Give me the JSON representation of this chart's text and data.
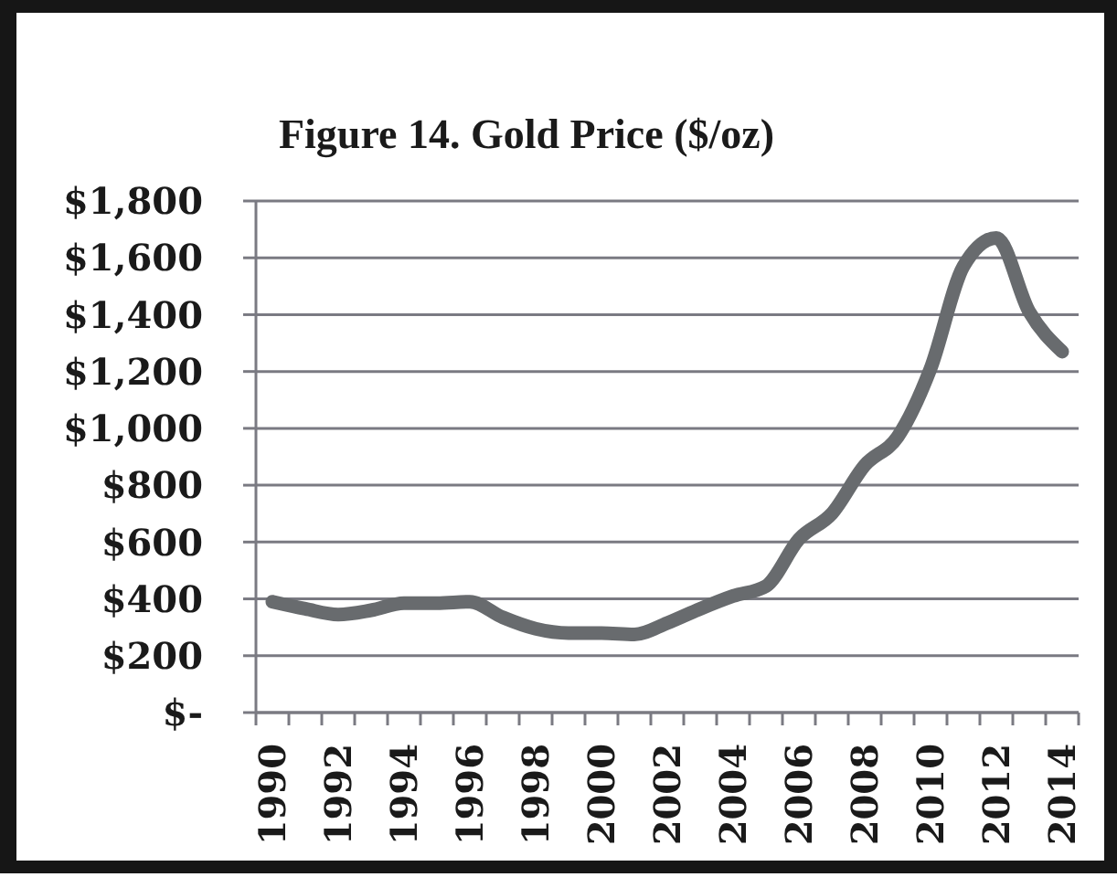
{
  "chart_data": {
    "type": "line",
    "title": "Figure 14. Gold Price ($/oz)",
    "categories": [
      "1990",
      null,
      "1992",
      null,
      "1994",
      null,
      "1996",
      null,
      "1998",
      null,
      "2000",
      null,
      "2002",
      null,
      "2004",
      null,
      "2006",
      null,
      "2008",
      null,
      "2010",
      null,
      "2012",
      null,
      "2014"
    ],
    "series": [
      {
        "color": "#686b6e",
        "values": [
          390,
          365,
          345,
          360,
          385,
          385,
          390,
          335,
          295,
          280,
          280,
          275,
          315,
          365,
          410,
          445,
          610,
          700,
          870,
          970,
          1210,
          1570,
          1670,
          1410,
          1270
        ]
      }
    ],
    "ylim": [
      0,
      1800
    ],
    "yticks": [
      {
        "value": 0,
        "label": "$-"
      },
      {
        "value": 200,
        "label": "$200"
      },
      {
        "value": 400,
        "label": "$400"
      },
      {
        "value": 600,
        "label": "$600"
      },
      {
        "value": 800,
        "label": "$800"
      },
      {
        "value": 1000,
        "label": "$1,000"
      },
      {
        "value": 1200,
        "label": "$1,200"
      },
      {
        "value": 1400,
        "label": "$1,400"
      },
      {
        "value": 1600,
        "label": "$1,600"
      },
      {
        "value": 1800,
        "label": "$1,800"
      }
    ],
    "grid": "y",
    "marker": "none",
    "line_style": "solid"
  }
}
